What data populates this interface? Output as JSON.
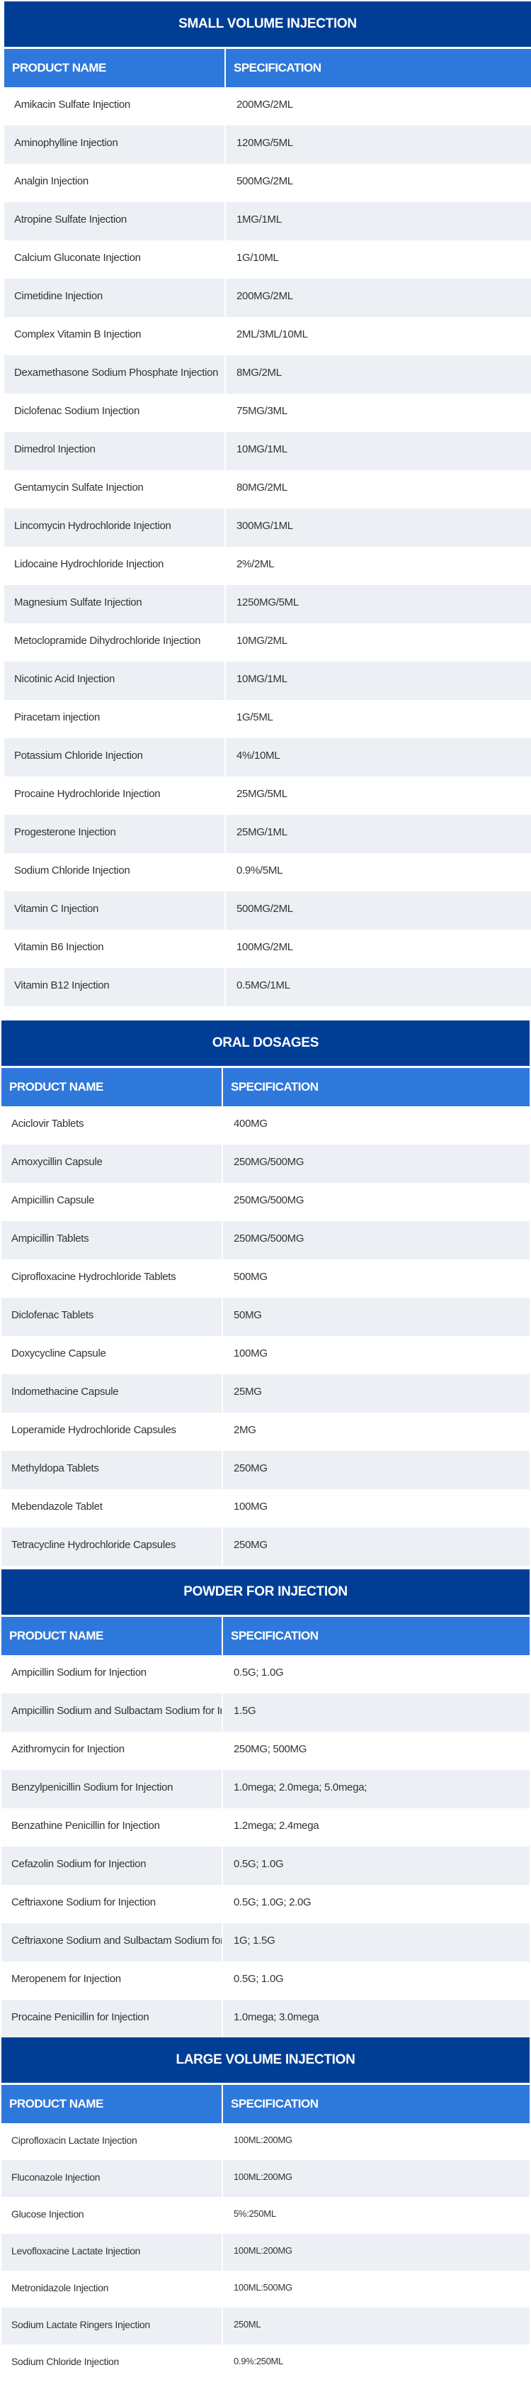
{
  "column_headers": {
    "name": "PRODUCT NAME",
    "spec": "SPECIFICATION"
  },
  "colors": {
    "title_bar": "#003e96",
    "header": "#2f78db",
    "alt_row": "#eceff4"
  },
  "sections": [
    {
      "title": "SMALL VOLUME INJECTION",
      "rows": [
        [
          "Amikacin Sulfate Injection",
          "200MG/2ML"
        ],
        [
          "Aminophylline Injection",
          "120MG/5ML"
        ],
        [
          "Analgin Injection",
          "500MG/2ML"
        ],
        [
          "Atropine Sulfate Injection",
          "1MG/1ML"
        ],
        [
          "Calcium Gluconate Injection",
          "1G/10ML"
        ],
        [
          "Cimetidine Injection",
          "200MG/2ML"
        ],
        [
          "Complex Vitamin B Injection",
          "2ML/3ML/10ML"
        ],
        [
          "Dexamethasone Sodium Phosphate Injection",
          "8MG/2ML"
        ],
        [
          "Diclofenac Sodium Injection",
          "75MG/3ML"
        ],
        [
          "Dimedrol Injection",
          "10MG/1ML"
        ],
        [
          "Gentamycin Sulfate Injection",
          "80MG/2ML"
        ],
        [
          "Lincomycin Hydrochloride Injection",
          "300MG/1ML"
        ],
        [
          "Lidocaine Hydrochloride Injection",
          "2%/2ML"
        ],
        [
          "Magnesium Sulfate Injection",
          "1250MG/5ML"
        ],
        [
          "Metoclopramide Dihydrochloride Injection",
          "10MG/2ML"
        ],
        [
          "Nicotinic Acid Injection",
          "10MG/1ML"
        ],
        [
          "Piracetam injection",
          "1G/5ML"
        ],
        [
          "Potassium Chloride Injection",
          "4%/10ML"
        ],
        [
          "Procaine Hydrochloride Injection",
          "25MG/5ML"
        ],
        [
          "Progesterone Injection",
          "25MG/1ML"
        ],
        [
          "Sodium Chloride Injection",
          "0.9%/5ML"
        ],
        [
          "Vitamin C Injection",
          "500MG/2ML"
        ],
        [
          "Vitamin B6 Injection",
          "100MG/2ML"
        ],
        [
          "Vitamin B12 Injection",
          "0.5MG/1ML"
        ]
      ]
    },
    {
      "title": "ORAL DOSAGES",
      "rows": [
        [
          "Aciclovir Tablets",
          "400MG"
        ],
        [
          "Amoxycillin Capsule",
          "250MG/500MG"
        ],
        [
          "Ampicillin Capsule",
          "250MG/500MG"
        ],
        [
          "Ampicillin Tablets",
          "250MG/500MG"
        ],
        [
          "Ciprofloxacine Hydrochloride Tablets",
          "500MG"
        ],
        [
          "Diclofenac Tablets",
          "50MG"
        ],
        [
          "Doxycycline Capsule",
          "100MG"
        ],
        [
          "Indomethacine Capsule",
          "25MG"
        ],
        [
          "Loperamide Hydrochloride Capsules",
          "2MG"
        ],
        [
          "Methyldopa Tablets",
          "250MG"
        ],
        [
          "Mebendazole Tablet",
          "100MG"
        ],
        [
          "Tetracycline Hydrochloride Capsules",
          "250MG"
        ]
      ]
    },
    {
      "title": "POWDER FOR INJECTION",
      "rows": [
        [
          "Ampicillin Sodium for Injection",
          "0.5G; 1.0G"
        ],
        [
          "Ampicillin Sodium and Sulbactam Sodium for Injection",
          "1.5G"
        ],
        [
          "Azithromycin for Injection",
          "250MG; 500MG"
        ],
        [
          "Benzylpenicillin Sodium for Injection",
          "1.0mega; 2.0mega; 5.0mega;"
        ],
        [
          "Benzathine Penicillin for Injection",
          "1.2mega; 2.4mega"
        ],
        [
          "Cefazolin Sodium for Injection",
          "0.5G; 1.0G"
        ],
        [
          "Ceftriaxone Sodium for Injection",
          "0.5G; 1.0G; 2.0G"
        ],
        [
          "Ceftriaxone Sodium and Sulbactam Sodium for Injection",
          "1G; 1.5G"
        ],
        [
          "Meropenem for Injection",
          "0.5G; 1.0G"
        ],
        [
          "Procaine Penicillin for Injection",
          "1.0mega; 3.0mega"
        ]
      ]
    },
    {
      "title": "LARGE VOLUME INJECTION",
      "rows": [
        [
          "Ciprofloxacin  Lactate  Injection",
          "100ML:200MG"
        ],
        [
          "Fluconazole  Injection",
          "100ML:200MG"
        ],
        [
          "Glucose Injection",
          "5%:250ML"
        ],
        [
          "Levofloxacine Lactate Injection",
          "100ML:200MG"
        ],
        [
          "Metronidazole Injection",
          "100ML:500MG"
        ],
        [
          "Sodium Lactate Ringers Injection",
          "250ML"
        ],
        [
          "Sodium Chloride Injection",
          "0.9%:250ML"
        ]
      ]
    }
  ]
}
